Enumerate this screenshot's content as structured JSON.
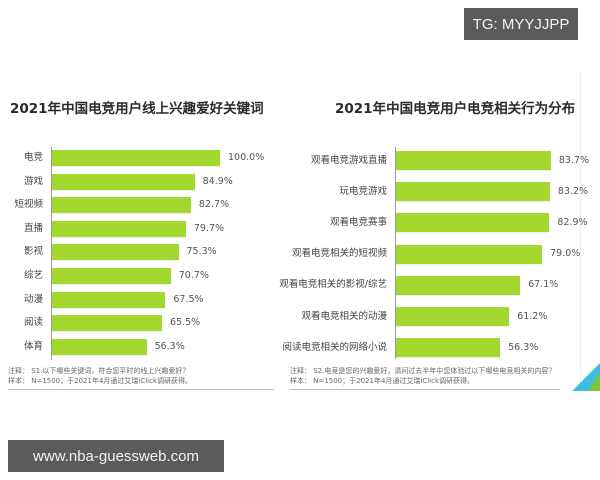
{
  "watermarks": {
    "top_right": "TG: MYYJJPP",
    "bottom_left": "www.nba-guessweb.com"
  },
  "colors": {
    "bar": "#a3d92f",
    "watermark_bg": "#5b5b5b"
  },
  "chart_data": [
    {
      "type": "bar",
      "orientation": "horizontal",
      "title": "2021年中国电竞用户线上兴趣爱好关键词",
      "categories": [
        "电竞",
        "游戏",
        "短视频",
        "直播",
        "影视",
        "综艺",
        "动漫",
        "阅读",
        "体育"
      ],
      "values": [
        100.0,
        84.9,
        82.7,
        79.7,
        75.3,
        70.7,
        67.5,
        65.5,
        56.3
      ],
      "value_labels": [
        "100.0%",
        "84.9%",
        "82.7%",
        "79.7%",
        "75.3%",
        "70.7%",
        "67.5%",
        "65.5%",
        "56.3%"
      ],
      "xlabel": "",
      "ylabel": "",
      "xlim": [
        0,
        100
      ],
      "grid": false,
      "legend": null,
      "notes": [
        "注释： S1.以下哪些关键词，符合您平时的线上兴趣爱好？",
        "样本： N=1500；于2021年4月通过艾瑞iClick调研获得。"
      ]
    },
    {
      "type": "bar",
      "orientation": "horizontal",
      "title": "2021年中国电竞用户电竞相关行为分布",
      "categories": [
        "观看电竞游戏直播",
        "玩电竞游戏",
        "观看电竞赛事",
        "观看电竞相关的短视频",
        "观看电竞相关的影视/综艺",
        "观看电竞相关的动漫",
        "阅读电竞相关的网络小说"
      ],
      "values": [
        83.7,
        83.2,
        82.9,
        79.0,
        67.1,
        61.2,
        56.3
      ],
      "value_labels": [
        "83.7%",
        "83.2%",
        "82.9%",
        "79.0%",
        "67.1%",
        "61.2%",
        "56.3%"
      ],
      "xlabel": "",
      "ylabel": "",
      "xlim": [
        0,
        100
      ],
      "grid": false,
      "legend": null,
      "notes": [
        "注释： S2.电竞是您的兴趣爱好，请问过去半年中您体验过以下哪些电竞相关的内容？",
        "样本： N=1500；于2021年4月通过艾瑞iClick调研获得。"
      ]
    }
  ]
}
